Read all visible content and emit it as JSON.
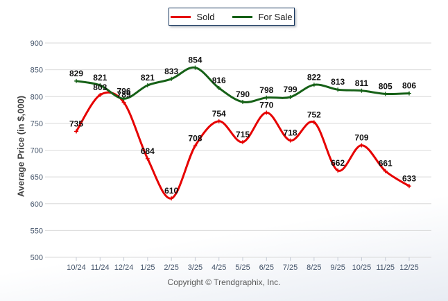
{
  "legend": {
    "items": [
      {
        "label": "Sold",
        "color": "#e60000"
      },
      {
        "label": "For Sale",
        "color": "#166117"
      }
    ]
  },
  "footer": {
    "copyright": "Copyright © Trendgraphix, Inc."
  },
  "colors": {
    "sold_line": "#e60000",
    "for_sale_line": "#166117",
    "gridline": "#d9d9d9",
    "tick_label": "#44546a",
    "data_label": "#111111",
    "legend_border": "#17375e"
  },
  "chart_data": {
    "type": "line",
    "title": "",
    "xlabel": "",
    "ylabel": "Average Price (in $,000)",
    "categories": [
      "10/24",
      "11/24",
      "12/24",
      "1/25",
      "2/25",
      "3/25",
      "4/25",
      "5/25",
      "6/25",
      "7/25",
      "8/25",
      "9/25",
      "10/25",
      "11/25",
      "12/25"
    ],
    "series": [
      {
        "name": "Sold",
        "color": "#e60000",
        "values": [
          735,
          803,
          789,
          684,
          610,
          708,
          754,
          715,
          770,
          718,
          752,
          662,
          709,
          661,
          633
        ]
      },
      {
        "name": "For Sale",
        "color": "#166117",
        "values": [
          829,
          821,
          796,
          821,
          833,
          854,
          816,
          790,
          798,
          799,
          822,
          813,
          811,
          805,
          806
        ]
      }
    ],
    "ylim": [
      500,
      900
    ],
    "ytick_step": 50,
    "yticks": [
      500,
      550,
      600,
      650,
      700,
      750,
      800,
      850,
      900
    ],
    "grid": true,
    "smooth": true,
    "data_labels": true,
    "legend_position": "top-center"
  }
}
